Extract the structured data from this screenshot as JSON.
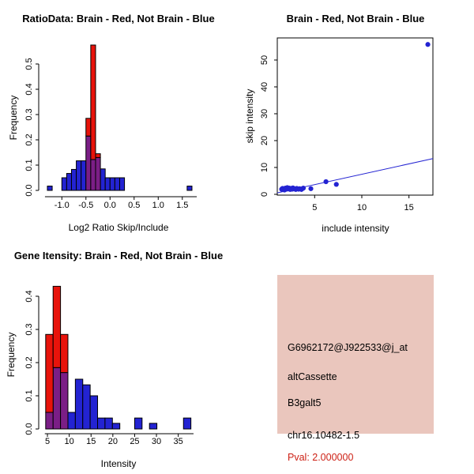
{
  "colors": {
    "red": "#e8130b",
    "blue": "#2323d2",
    "purple": "#7b1e86",
    "black": "#000000",
    "panel_bg": "#eac6bd",
    "pval_red": "#cd2015"
  },
  "chart_data": [
    {
      "id": "ratio-histogram",
      "type": "bar",
      "title": "RatioData: Brain - Red, Not Brain - Blue",
      "xlabel": "Log2 Ratio Skip/Include",
      "ylabel": "Frequency",
      "xlim": [
        -1.48,
        1.85
      ],
      "ylim": [
        0,
        0.585
      ],
      "grid": false,
      "xticks": [
        -1.0,
        -0.5,
        0.0,
        0.5,
        1.0,
        1.5
      ],
      "xtick_labels": [
        "-1.0",
        "-0.5",
        "0.0",
        "0.5",
        "1.0",
        "1.5"
      ],
      "yticks": [
        0.0,
        0.1,
        0.2,
        0.3,
        0.4,
        0.5
      ],
      "ytick_labels": [
        "0.0",
        "0.1",
        "0.2",
        "0.3",
        "0.4",
        "0.5"
      ],
      "bars": [
        {
          "x0": -1.3,
          "x1": -1.2,
          "y0": 0,
          "y1": 0.017,
          "c": "blue"
        },
        {
          "x0": -1.0,
          "x1": -0.9,
          "y0": 0,
          "y1": 0.05,
          "c": "blue"
        },
        {
          "x0": -0.9,
          "x1": -0.8,
          "y0": 0,
          "y1": 0.067,
          "c": "blue"
        },
        {
          "x0": -0.8,
          "x1": -0.7,
          "y0": 0,
          "y1": 0.083,
          "c": "blue"
        },
        {
          "x0": -0.7,
          "x1": -0.6,
          "y0": 0,
          "y1": 0.117,
          "c": "blue"
        },
        {
          "x0": -0.6,
          "x1": -0.5,
          "y0": 0,
          "y1": 0.117,
          "c": "blue"
        },
        {
          "x0": -0.2,
          "x1": -0.1,
          "y0": 0,
          "y1": 0.085,
          "c": "blue"
        },
        {
          "x0": -0.1,
          "x1": 0.0,
          "y0": 0,
          "y1": 0.05,
          "c": "blue"
        },
        {
          "x0": 0.0,
          "x1": 0.1,
          "y0": 0,
          "y1": 0.05,
          "c": "blue"
        },
        {
          "x0": 0.1,
          "x1": 0.2,
          "y0": 0,
          "y1": 0.05,
          "c": "blue"
        },
        {
          "x0": 0.2,
          "x1": 0.3,
          "y0": 0,
          "y1": 0.05,
          "c": "blue"
        },
        {
          "x0": 1.6,
          "x1": 1.7,
          "y0": 0,
          "y1": 0.017,
          "c": "blue"
        },
        {
          "x0": -0.5,
          "x1": -0.4,
          "y0": 0,
          "y1": 0.215,
          "c": "purple"
        },
        {
          "x0": -0.4,
          "x1": -0.3,
          "y0": 0,
          "y1": 0.122,
          "c": "purple"
        },
        {
          "x0": -0.3,
          "x1": -0.2,
          "y0": 0,
          "y1": 0.13,
          "c": "purple"
        },
        {
          "x0": -0.5,
          "x1": -0.4,
          "y0": 0.215,
          "y1": 0.285,
          "c": "red"
        },
        {
          "x0": -0.4,
          "x1": -0.3,
          "y0": 0.122,
          "y1": 0.575,
          "c": "red"
        },
        {
          "x0": -0.3,
          "x1": -0.2,
          "y0": 0.13,
          "y1": 0.145,
          "c": "red"
        }
      ]
    },
    {
      "id": "skip-include-scatter",
      "type": "scatter",
      "title": "Brain - Red, Not Brain - Blue",
      "xlabel": "include intensity",
      "ylabel": "skip intensity",
      "xlim": [
        1.0,
        17.5
      ],
      "ylim": [
        0,
        58
      ],
      "grid": false,
      "xticks": [
        5,
        10,
        15
      ],
      "xtick_labels": [
        "5",
        "10",
        "15"
      ],
      "yticks": [
        0,
        10,
        20,
        30,
        40,
        50
      ],
      "ytick_labels": [
        "0",
        "10",
        "20",
        "30",
        "40",
        "50"
      ],
      "point_color": "blue",
      "points": [
        [
          1.5,
          1.9
        ],
        [
          1.6,
          2.2
        ],
        [
          1.8,
          1.6
        ],
        [
          1.9,
          2.3
        ],
        [
          2.0,
          1.9
        ],
        [
          2.1,
          2.5
        ],
        [
          2.2,
          2.0
        ],
        [
          2.3,
          2.3
        ],
        [
          2.4,
          1.8
        ],
        [
          2.5,
          2.2
        ],
        [
          2.6,
          1.9
        ],
        [
          2.7,
          2.4
        ],
        [
          2.8,
          2.0
        ],
        [
          3.0,
          1.8
        ],
        [
          3.1,
          2.2
        ],
        [
          3.3,
          1.9
        ],
        [
          3.4,
          2.1
        ],
        [
          3.6,
          1.8
        ],
        [
          3.7,
          2.1
        ],
        [
          3.8,
          2.3
        ],
        [
          4.6,
          2.1
        ],
        [
          6.2,
          4.7
        ],
        [
          7.3,
          3.7
        ],
        [
          17.0,
          55.8
        ]
      ],
      "fit_line": {
        "x1": 1.04,
        "y1": 0.55,
        "x2": 17.54,
        "y2": 13.3,
        "c": "blue"
      }
    },
    {
      "id": "intensity-histogram",
      "type": "bar",
      "title": "Gene Itensity: Brain - Red, Not Brain - Blue",
      "xlabel": "Intensity",
      "ylabel": "Frequency",
      "xlim": [
        3.0,
        38.7
      ],
      "ylim": [
        0,
        0.44
      ],
      "grid": false,
      "xticks": [
        5,
        10,
        15,
        20,
        25,
        30,
        35
      ],
      "xtick_labels": [
        "5",
        "10",
        "15",
        "20",
        "25",
        "30",
        "35"
      ],
      "yticks": [
        0.0,
        0.1,
        0.2,
        0.3,
        0.4
      ],
      "ytick_labels": [
        "0.0",
        "0.1",
        "0.2",
        "0.3",
        "0.4"
      ],
      "bars": [
        {
          "x0": 4.6,
          "x1": 6.3,
          "y0": 0,
          "y1": 0.05,
          "c": "purple"
        },
        {
          "x0": 6.3,
          "x1": 8.0,
          "y0": 0,
          "y1": 0.185,
          "c": "purple"
        },
        {
          "x0": 8.0,
          "x1": 9.7,
          "y0": 0,
          "y1": 0.17,
          "c": "purple"
        },
        {
          "x0": 4.6,
          "x1": 6.3,
          "y0": 0.05,
          "y1": 0.285,
          "c": "red"
        },
        {
          "x0": 6.3,
          "x1": 8.0,
          "y0": 0.185,
          "y1": 0.43,
          "c": "red"
        },
        {
          "x0": 8.0,
          "x1": 9.7,
          "y0": 0.17,
          "y1": 0.285,
          "c": "red"
        },
        {
          "x0": 9.7,
          "x1": 11.4,
          "y0": 0,
          "y1": 0.05,
          "c": "blue"
        },
        {
          "x0": 11.4,
          "x1": 13.1,
          "y0": 0,
          "y1": 0.15,
          "c": "blue"
        },
        {
          "x0": 13.1,
          "x1": 14.8,
          "y0": 0,
          "y1": 0.133,
          "c": "blue"
        },
        {
          "x0": 14.8,
          "x1": 16.5,
          "y0": 0,
          "y1": 0.1,
          "c": "blue"
        },
        {
          "x0": 16.5,
          "x1": 18.2,
          "y0": 0,
          "y1": 0.033,
          "c": "blue"
        },
        {
          "x0": 18.2,
          "x1": 19.9,
          "y0": 0,
          "y1": 0.033,
          "c": "blue"
        },
        {
          "x0": 19.9,
          "x1": 21.6,
          "y0": 0,
          "y1": 0.017,
          "c": "blue"
        },
        {
          "x0": 25.0,
          "x1": 26.7,
          "y0": 0,
          "y1": 0.033,
          "c": "blue"
        },
        {
          "x0": 28.4,
          "x1": 30.1,
          "y0": 0,
          "y1": 0.017,
          "c": "blue"
        },
        {
          "x0": 36.2,
          "x1": 37.9,
          "y0": 0,
          "y1": 0.033,
          "c": "blue"
        }
      ]
    }
  ],
  "info_panel": {
    "lines": [
      {
        "text": "G6962172@J922533@j_at",
        "color": "black"
      },
      {
        "text": "altCassette",
        "color": "black"
      },
      {
        "text": "B3galt5",
        "color": "black"
      },
      {
        "text": "chr16.10482-1.5",
        "color": "black"
      },
      {
        "text": "Pval: 2.000000",
        "color": "pval_red"
      }
    ]
  }
}
